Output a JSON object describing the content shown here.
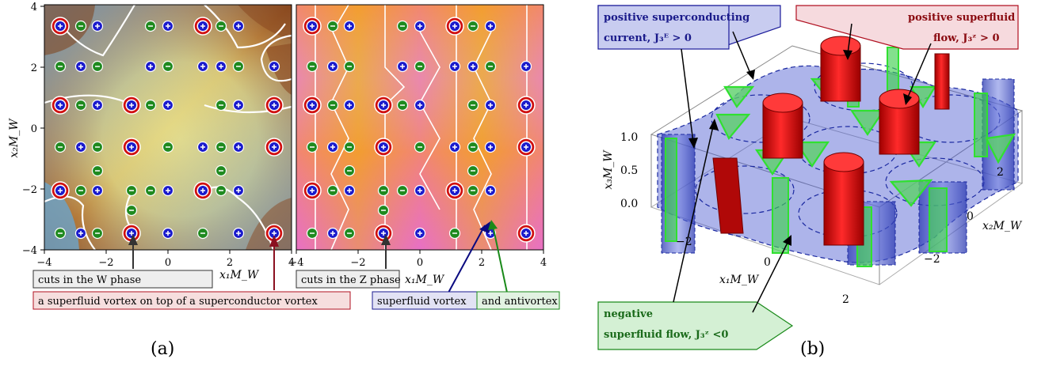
{
  "panel_a": {
    "axis_x_label_left": "x₁M_W",
    "axis_x_label_right": "x₁M_W",
    "axis_y_label": "x₂M_W",
    "x_ticks": [
      "−4",
      "−2",
      "0",
      "2",
      "4"
    ],
    "y_ticks": [
      "4",
      "2",
      "0",
      "−2",
      "−4"
    ],
    "annotations": {
      "cuts_w": "cuts in the W phase",
      "cuts_z": "cuts in the Z phase",
      "superfluid_on_super": "a superfluid vortex on top of a superconductor vortex",
      "superfluid_vortex": "superfluid vortex",
      "antivortex": "and antivortex"
    },
    "caption": "(a)"
  },
  "panel_b": {
    "x1_label": "x₁M_W",
    "x2_label": "x₂M_W",
    "x3_label": "x₃M_W",
    "x1_ticks": [
      "−2",
      "0",
      "2"
    ],
    "x2_ticks": [
      "2",
      "0",
      "−2"
    ],
    "x3_ticks": [
      "1.0",
      "0.5",
      "0.0"
    ],
    "annotations": {
      "pos_current_1": "positive superconducting",
      "pos_current_2": "current, J₃ᴱ > 0",
      "pos_flow_1": "positive superfluid",
      "pos_flow_2": "flow, J₃ᶻ > 0",
      "neg_flow_1": "negative",
      "neg_flow_2": "superfluid flow, J₃ᶻ <0"
    },
    "caption": "(b)"
  },
  "colors": {
    "plus_vortex": "#1a1acc",
    "minus_vortex": "#1f8a1f",
    "red_ring": "#d01010",
    "blue_tube": "#5060d8",
    "green_outline": "#30e030",
    "red_cylinder": "#e01010"
  }
}
